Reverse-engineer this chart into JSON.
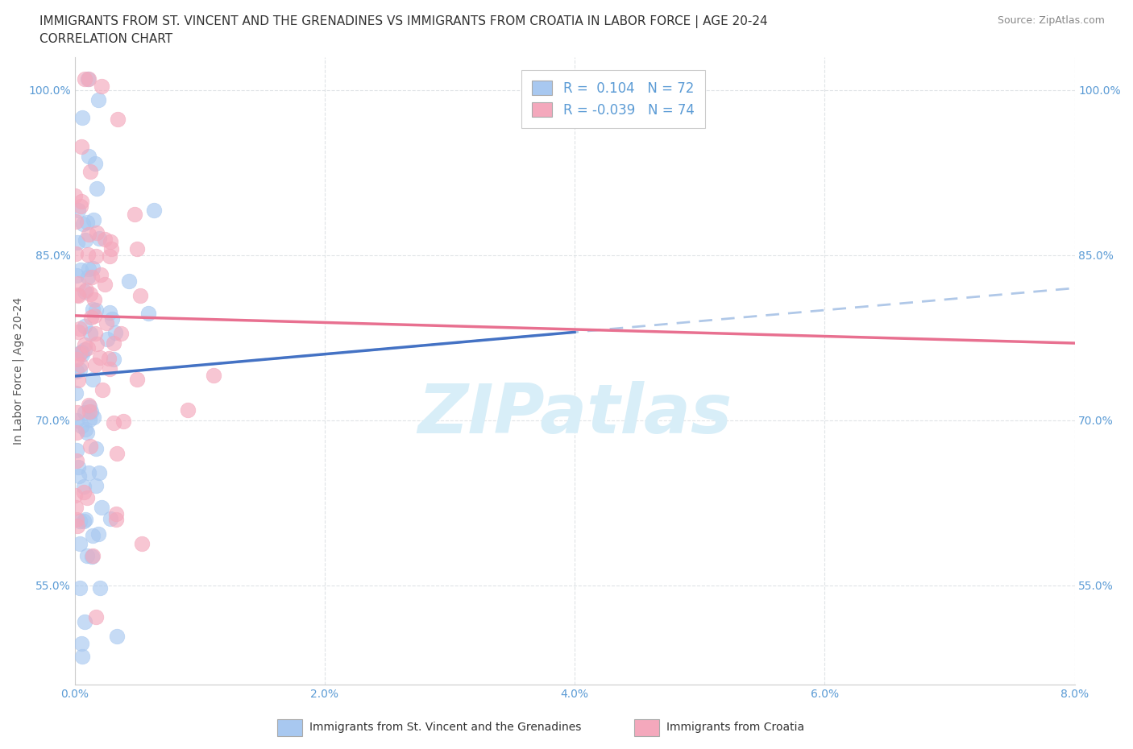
{
  "title_line1": "IMMIGRANTS FROM ST. VINCENT AND THE GRENADINES VS IMMIGRANTS FROM CROATIA IN LABOR FORCE | AGE 20-24",
  "title_line2": "CORRELATION CHART",
  "source_text": "Source: ZipAtlas.com",
  "ylabel": "In Labor Force | Age 20-24",
  "xlim": [
    0.0,
    0.08
  ],
  "ylim": [
    0.46,
    1.03
  ],
  "xtick_labels": [
    "0.0%",
    "2.0%",
    "4.0%",
    "6.0%",
    "8.0%"
  ],
  "xtick_values": [
    0.0,
    0.02,
    0.04,
    0.06,
    0.08
  ],
  "ytick_labels": [
    "55.0%",
    "70.0%",
    "85.0%",
    "100.0%"
  ],
  "ytick_values": [
    0.55,
    0.7,
    0.85,
    1.0
  ],
  "color_blue": "#A8C8F0",
  "color_pink": "#F4A8BC",
  "r_blue": 0.104,
  "n_blue": 72,
  "r_pink": -0.039,
  "n_pink": 74,
  "legend_label_blue": "Immigrants from St. Vincent and the Grenadines",
  "legend_label_pink": "Immigrants from Croatia",
  "scatter_blue_x": [
    0.001,
    0.0005,
    0.002,
    0.001,
    0.0015,
    0.001,
    0.0008,
    0.001,
    0.001,
    0.0005,
    0.001,
    0.0015,
    0.002,
    0.001,
    0.0008,
    0.001,
    0.002,
    0.0015,
    0.001,
    0.0005,
    0.001,
    0.0015,
    0.002,
    0.0025,
    0.003,
    0.002,
    0.0015,
    0.001,
    0.002,
    0.0015,
    0.001,
    0.0008,
    0.0005,
    0.001,
    0.0015,
    0.002,
    0.0025,
    0.002,
    0.001,
    0.0015,
    0.002,
    0.003,
    0.0035,
    0.004,
    0.003,
    0.0025,
    0.002,
    0.0015,
    0.001,
    0.0008,
    0.0005,
    0.001,
    0.002,
    0.003,
    0.0025,
    0.002,
    0.0015,
    0.001,
    0.002,
    0.0015,
    0.001,
    0.0008,
    0.0035,
    0.0045,
    0.003,
    0.0025,
    0.002,
    0.0015,
    0.001,
    0.001,
    0.0015,
    0.001
  ],
  "scatter_blue_y": [
    0.985,
    0.975,
    0.97,
    0.965,
    0.96,
    0.92,
    0.91,
    0.905,
    0.9,
    0.895,
    0.89,
    0.888,
    0.885,
    0.882,
    0.878,
    0.875,
    0.87,
    0.865,
    0.86,
    0.855,
    0.85,
    0.845,
    0.84,
    0.838,
    0.835,
    0.832,
    0.828,
    0.825,
    0.82,
    0.815,
    0.81,
    0.805,
    0.8,
    0.795,
    0.79,
    0.785,
    0.78,
    0.775,
    0.77,
    0.765,
    0.76,
    0.755,
    0.75,
    0.745,
    0.74,
    0.735,
    0.73,
    0.725,
    0.72,
    0.715,
    0.71,
    0.705,
    0.7,
    0.695,
    0.69,
    0.685,
    0.68,
    0.675,
    0.67,
    0.665,
    0.66,
    0.655,
    0.65,
    0.645,
    0.64,
    0.635,
    0.598,
    0.59,
    0.57,
    0.56,
    0.54,
    0.5
  ],
  "scatter_pink_x": [
    0.003,
    0.004,
    0.0045,
    0.005,
    0.004,
    0.003,
    0.0025,
    0.002,
    0.003,
    0.0035,
    0.004,
    0.003,
    0.0025,
    0.002,
    0.003,
    0.004,
    0.003,
    0.0025,
    0.002,
    0.003,
    0.0035,
    0.004,
    0.003,
    0.0025,
    0.002,
    0.0015,
    0.001,
    0.0008,
    0.001,
    0.0015,
    0.002,
    0.0025,
    0.003,
    0.0035,
    0.002,
    0.0015,
    0.001,
    0.0008,
    0.001,
    0.0015,
    0.002,
    0.003,
    0.004,
    0.0035,
    0.003,
    0.0025,
    0.002,
    0.0015,
    0.001,
    0.0008,
    0.001,
    0.0015,
    0.002,
    0.003,
    0.0025,
    0.002,
    0.0015,
    0.001,
    0.002,
    0.003,
    0.004,
    0.0035,
    0.003,
    0.0025,
    0.002,
    0.0015,
    0.001,
    0.0008,
    0.002,
    0.003,
    0.0045,
    0.005,
    0.006,
    0.007
  ],
  "scatter_pink_y": [
    0.988,
    0.982,
    0.978,
    0.975,
    0.972,
    0.968,
    0.962,
    0.958,
    0.955,
    0.952,
    0.948,
    0.945,
    0.94,
    0.935,
    0.93,
    0.925,
    0.92,
    0.915,
    0.91,
    0.905,
    0.9,
    0.895,
    0.89,
    0.885,
    0.88,
    0.875,
    0.87,
    0.865,
    0.86,
    0.855,
    0.85,
    0.845,
    0.84,
    0.835,
    0.83,
    0.825,
    0.82,
    0.815,
    0.81,
    0.805,
    0.8,
    0.795,
    0.79,
    0.785,
    0.78,
    0.775,
    0.77,
    0.765,
    0.76,
    0.755,
    0.75,
    0.745,
    0.74,
    0.735,
    0.73,
    0.72,
    0.715,
    0.71,
    0.7,
    0.695,
    0.69,
    0.685,
    0.68,
    0.675,
    0.665,
    0.62,
    0.59,
    0.57,
    0.81,
    0.808,
    0.73,
    0.725,
    0.75,
    0.742
  ],
  "trend_blue_solid_color": "#4472C4",
  "trend_blue_dash_color": "#B0C8E8",
  "trend_pink_color": "#E87090",
  "watermark_text": "ZIPatlas",
  "watermark_color": "#D8EEF8",
  "title_fontsize": 11,
  "axis_label_fontsize": 10,
  "tick_fontsize": 10,
  "legend_fontsize": 12,
  "tick_color": "#5B9BD5",
  "right_tick_color": "#5B9BD5"
}
